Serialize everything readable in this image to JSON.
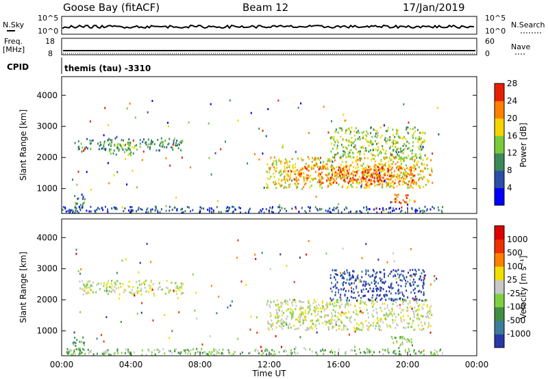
{
  "header": {
    "site": "Goose Bay (fitACF)",
    "beam": "Beam 12",
    "date": "17/Jan/2019"
  },
  "status_panels": {
    "nsky_label": "N.Sky",
    "nsky_ticks": [
      "10^5",
      "10^0"
    ],
    "nsearch_label": "N.Search",
    "nsearch_ticks": [
      "10^5",
      "10^0"
    ],
    "freq_label": "Freq.",
    "freq_unit": "[MHz]",
    "freq_ticks": [
      "18",
      "8"
    ],
    "nave_label": "Nave",
    "nave_ticks": [
      "60",
      "0"
    ],
    "cpid_label": "CPID",
    "cpid_value": "themis (tau) -3310"
  },
  "chart_data": [
    {
      "type": "heatmap",
      "name": "power",
      "ylabel": "Slant Range [km]",
      "ylim": [
        200,
        4600
      ],
      "yticks": [
        "1000",
        "2000",
        "3000",
        "4000"
      ],
      "colorbar_label": "Power [dB]",
      "colorbar_ticks": [
        "4",
        "8",
        "12",
        "16",
        "20",
        "24",
        "28"
      ],
      "colors": [
        "#0000ff",
        "#2a4fa6",
        "#3b8a5a",
        "#7acb3c",
        "#f5d400",
        "#ff8000",
        "#e82000"
      ],
      "regions": [
        {
          "t0": 0.6,
          "t1": 1.3,
          "r0": 350,
          "r1": 850,
          "level": 2
        },
        {
          "t0": 0.9,
          "t1": 7.0,
          "r0": 2250,
          "r1": 2650,
          "level": 2
        },
        {
          "t0": 2.7,
          "t1": 4.2,
          "r0": 2100,
          "r1": 2500,
          "level": 3
        },
        {
          "t0": 11.8,
          "t1": 21.4,
          "r0": 1050,
          "r1": 2050,
          "level": 4
        },
        {
          "t0": 13.0,
          "t1": 20.5,
          "r0": 1150,
          "r1": 1750,
          "level": 5
        },
        {
          "t0": 16.0,
          "t1": 19.0,
          "r0": 1250,
          "r1": 1650,
          "level": 6
        },
        {
          "t0": 19.0,
          "t1": 20.5,
          "r0": 550,
          "r1": 850,
          "level": 5
        },
        {
          "t0": 15.5,
          "t1": 21.0,
          "r0": 2000,
          "r1": 3000,
          "level": 3
        },
        {
          "t0": 0.0,
          "t1": 22.0,
          "r0": 250,
          "r1": 450,
          "level": 1
        }
      ]
    },
    {
      "type": "heatmap",
      "name": "velocity",
      "ylabel": "Slant Range [km]",
      "xlabel": "Time UT",
      "ylim": [
        200,
        4600
      ],
      "yticks": [
        "1000",
        "2000",
        "3000",
        "4000"
      ],
      "xticks": [
        "00:00",
        "04:00",
        "08:00",
        "12:00",
        "16:00",
        "20:00",
        "00:00"
      ],
      "xlim": [
        0,
        24
      ],
      "colorbar_label": "Velocity [m s⁻¹]",
      "colorbar_ticks": [
        "1000",
        "500",
        "100",
        "25",
        "-25",
        "-100",
        "-500",
        "-1000"
      ],
      "colors": [
        "#2838a8",
        "#3c7d9a",
        "#3f8f45",
        "#7fd040",
        "#c8c8c8",
        "#f0e000",
        "#ff8000",
        "#f03000",
        "#e00000"
      ],
      "regions": [
        {
          "t0": 0.6,
          "t1": 1.3,
          "r0": 350,
          "r1": 850,
          "level": 2
        },
        {
          "t0": 1.0,
          "t1": 7.0,
          "r0": 2200,
          "r1": 2650,
          "level": 4
        },
        {
          "t0": 11.8,
          "t1": 21.4,
          "r0": 1050,
          "r1": 2050,
          "level": 4
        },
        {
          "t0": 19.0,
          "t1": 20.5,
          "r0": 550,
          "r1": 850,
          "level": 3
        },
        {
          "t0": 15.5,
          "t1": 21.0,
          "r0": 2000,
          "r1": 3000,
          "level": 0
        },
        {
          "t0": 0.0,
          "t1": 22.0,
          "r0": 250,
          "r1": 450,
          "level": 3
        }
      ]
    }
  ]
}
